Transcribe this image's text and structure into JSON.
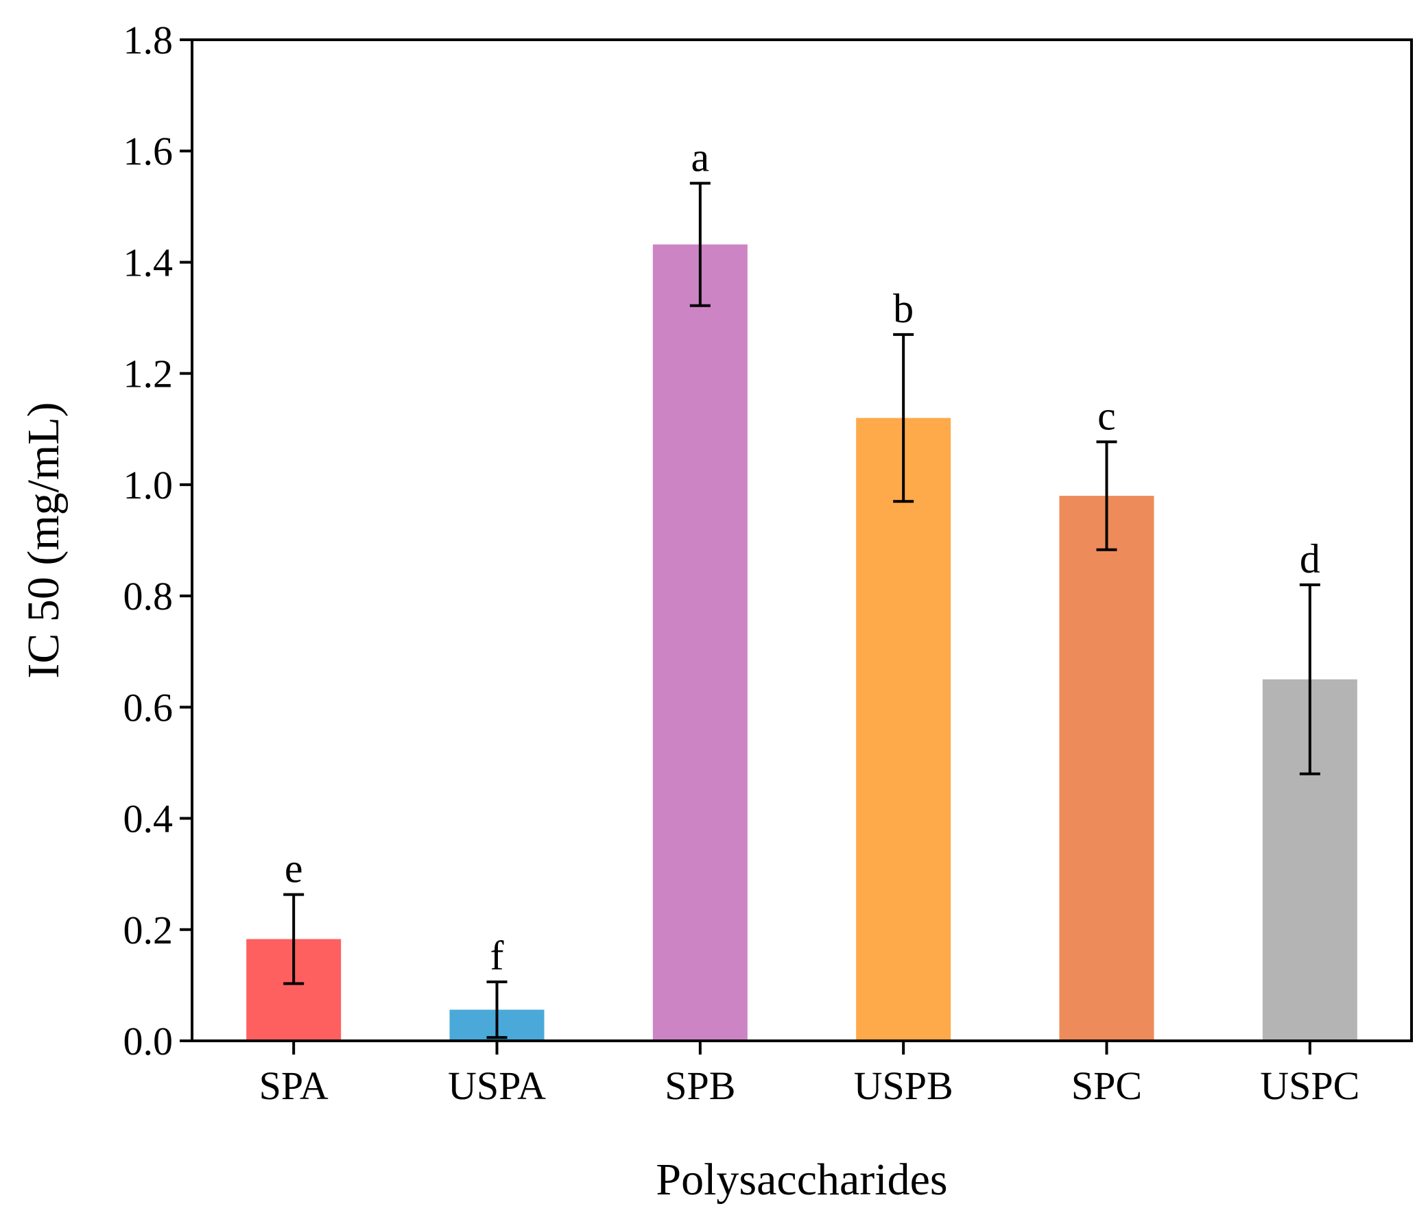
{
  "chart_data": {
    "type": "bar",
    "title": "",
    "xlabel": "Polysaccharides",
    "ylabel": "IC 50 (mg/mL)",
    "ylim": [
      0,
      1.8
    ],
    "yticks": [
      "0.0",
      "0.2",
      "0.4",
      "0.6",
      "0.8",
      "1.0",
      "1.2",
      "1.4",
      "1.6",
      "1.8"
    ],
    "categories": [
      "SPA",
      "USPA",
      "SPB",
      "USPB",
      "SPC",
      "USPC"
    ],
    "values": [
      0.183,
      0.056,
      1.432,
      1.12,
      0.98,
      0.65
    ],
    "errors": [
      0.08,
      0.05,
      0.11,
      0.15,
      0.097,
      0.17
    ],
    "significance_letters": [
      "e",
      "f",
      "a",
      "b",
      "c",
      "d"
    ],
    "colors": [
      "#fe6060",
      "#4aa9d8",
      "#cd84c4",
      "#fea94a",
      "#ee8b5a",
      "#b4b4b4"
    ],
    "grid": false,
    "legend": "none"
  }
}
